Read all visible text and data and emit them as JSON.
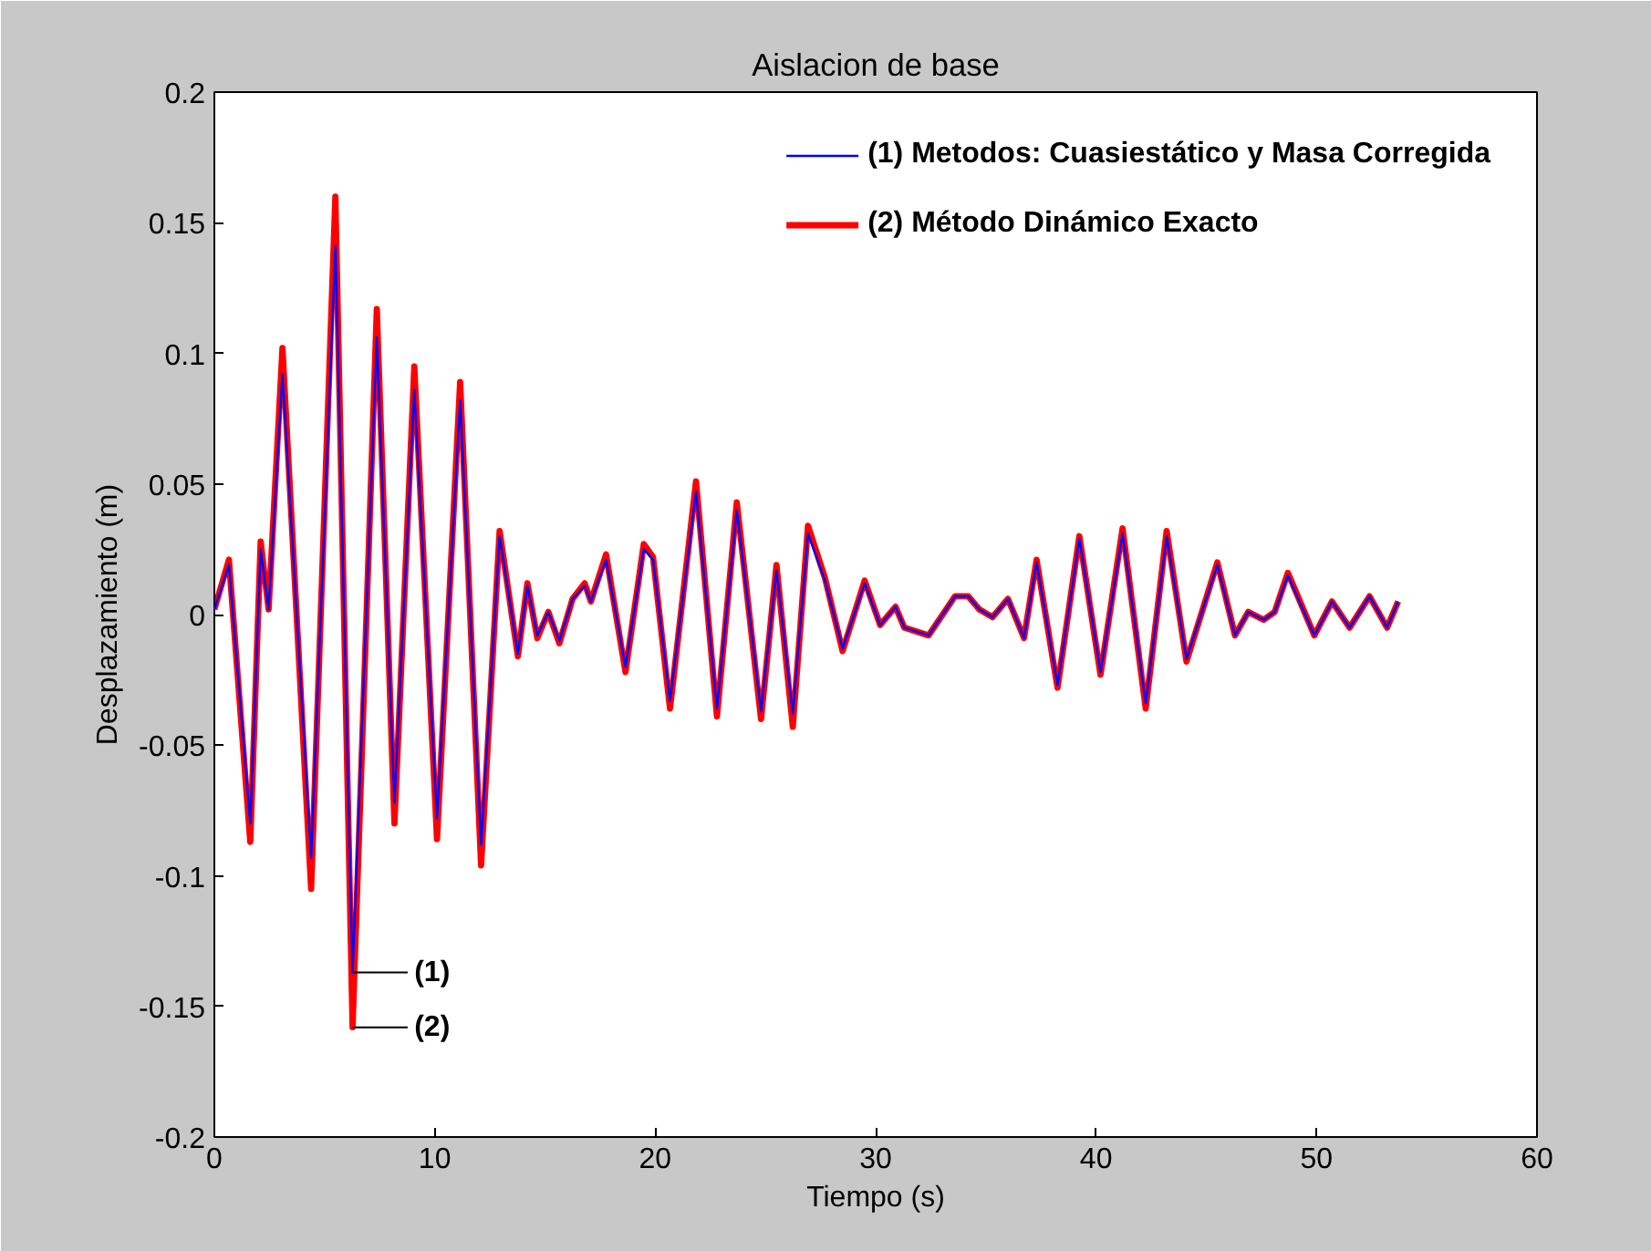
{
  "chart_data": {
    "type": "line",
    "title": "Aislacion de base",
    "xlabel": "Tiempo (s)",
    "ylabel": "Desplazamiento (m)",
    "x": [
      0,
      0.66,
      1.63,
      2.1,
      2.46,
      3.09,
      4.39,
      5.49,
      6.27,
      7.37,
      8.17,
      9.07,
      10.1,
      11.15,
      12.1,
      12.94,
      13.77,
      14.2,
      14.65,
      15.15,
      15.65,
      16.25,
      16.8,
      17.08,
      17.77,
      18.65,
      19.48,
      19.9,
      20.67,
      21.85,
      22.8,
      23.7,
      24.8,
      25.5,
      26.24,
      26.93,
      27.7,
      28.5,
      29.5,
      30.2,
      30.9,
      31.3,
      32.4,
      33.6,
      34.2,
      34.7,
      35.3,
      36.0,
      36.73,
      37.3,
      38.25,
      39.24,
      40.2,
      41.2,
      42.25,
      43.2,
      44.1,
      45.5,
      46.3,
      46.9,
      47.6,
      48.1,
      48.7,
      49.9,
      50.7,
      51.5,
      52.4,
      53.2,
      53.7
    ],
    "series": [
      {
        "name": "(1) Metodos: Cuasiestático y Masa Corregida",
        "color": "#0000ff",
        "values": [
          0.002,
          0.019,
          -0.08,
          0.025,
          0.002,
          0.092,
          -0.093,
          0.141,
          -0.137,
          0.106,
          -0.072,
          0.086,
          -0.078,
          0.082,
          -0.088,
          0.03,
          -0.015,
          0.011,
          -0.008,
          0.001,
          -0.01,
          0.006,
          0.011,
          0.005,
          0.021,
          -0.02,
          0.025,
          0.021,
          -0.033,
          0.047,
          -0.036,
          0.04,
          -0.037,
          0.017,
          -0.038,
          0.031,
          0.013,
          -0.013,
          0.012,
          -0.004,
          0.003,
          -0.005,
          -0.008,
          0.007,
          0.007,
          0.002,
          -0.001,
          0.006,
          -0.009,
          0.02,
          -0.027,
          0.029,
          -0.022,
          0.031,
          -0.034,
          0.03,
          -0.017,
          0.019,
          -0.008,
          0.001,
          -0.002,
          0.001,
          0.015,
          -0.008,
          0.005,
          -0.005,
          0.007,
          -0.005,
          0.005
        ]
      },
      {
        "name": "(2) Método Dinámico Exacto",
        "color": "#ff0000",
        "values": [
          0.002,
          0.021,
          -0.087,
          0.028,
          0.002,
          0.102,
          -0.105,
          0.16,
          -0.158,
          0.117,
          -0.08,
          0.095,
          -0.086,
          0.089,
          -0.096,
          0.032,
          -0.016,
          0.012,
          -0.009,
          0.001,
          -0.011,
          0.006,
          0.012,
          0.005,
          0.023,
          -0.022,
          0.027,
          0.022,
          -0.036,
          0.051,
          -0.039,
          0.043,
          -0.04,
          0.019,
          -0.043,
          0.034,
          0.014,
          -0.014,
          0.013,
          -0.004,
          0.003,
          -0.005,
          -0.008,
          0.007,
          0.007,
          0.002,
          -0.001,
          0.006,
          -0.009,
          0.021,
          -0.028,
          0.03,
          -0.023,
          0.033,
          -0.036,
          0.032,
          -0.018,
          0.02,
          -0.008,
          0.001,
          -0.002,
          0.001,
          0.016,
          -0.008,
          0.005,
          -0.005,
          0.007,
          -0.005,
          0.005
        ]
      }
    ],
    "annotations": [
      {
        "text": "(1)",
        "x": 6.27,
        "y": -0.137
      },
      {
        "text": "(2)",
        "x": 6.27,
        "y": -0.158
      }
    ],
    "xlim": [
      0,
      60
    ],
    "xticks": [
      0,
      10,
      20,
      30,
      40,
      50,
      60
    ],
    "ylim": [
      -0.2,
      0.2
    ],
    "yticks": [
      -0.2,
      -0.15,
      -0.1,
      -0.05,
      0,
      0.05,
      0.1,
      0.15,
      0.2
    ],
    "grid": false,
    "legend": "top right",
    "line_style": "solid",
    "marker": "none"
  }
}
